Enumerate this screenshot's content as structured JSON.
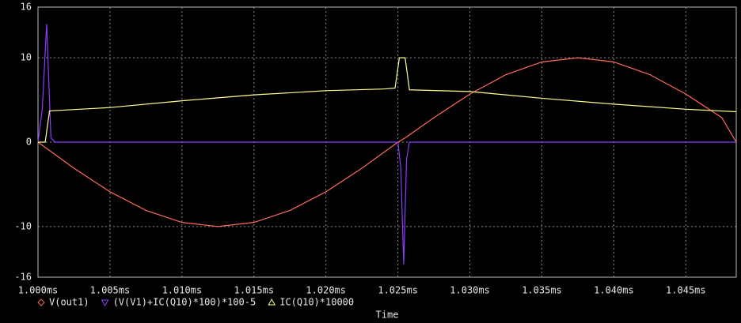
{
  "chart_data": {
    "type": "line",
    "xlabel": "Time",
    "xlim": [
      1.0,
      1.0485
    ],
    "ylim": [
      -16,
      16
    ],
    "xticks": [
      {
        "value": 1.0,
        "label": "1.000ms"
      },
      {
        "value": 1.005,
        "label": "1.005ms"
      },
      {
        "value": 1.01,
        "label": "1.010ms"
      },
      {
        "value": 1.015,
        "label": "1.015ms"
      },
      {
        "value": 1.02,
        "label": "1.020ms"
      },
      {
        "value": 1.025,
        "label": "1.025ms"
      },
      {
        "value": 1.03,
        "label": "1.030ms"
      },
      {
        "value": 1.035,
        "label": "1.035ms"
      },
      {
        "value": 1.04,
        "label": "1.040ms"
      },
      {
        "value": 1.045,
        "label": "1.045ms"
      }
    ],
    "yticks": [
      16,
      10,
      0,
      -10,
      -16
    ],
    "grid": true,
    "series": [
      {
        "name": "V(out1)",
        "color": "#ff6a5a",
        "marker": "diamond",
        "x": [
          1.0,
          1.0025,
          1.005,
          1.0075,
          1.01,
          1.0125,
          1.015,
          1.0175,
          1.02,
          1.0225,
          1.025,
          1.0255,
          1.0275,
          1.03,
          1.0325,
          1.035,
          1.0375,
          1.04,
          1.0425,
          1.045,
          1.0475,
          1.0485
        ],
        "values": [
          0,
          -3.09,
          -5.88,
          -8.09,
          -9.51,
          -10,
          -9.51,
          -8.09,
          -5.88,
          -3.09,
          0,
          0.5,
          2.9,
          5.7,
          8.0,
          9.5,
          10,
          9.5,
          8.0,
          5.7,
          2.9,
          0
        ]
      },
      {
        "name": "(V(V1)+IC(Q10)*100)*100-5",
        "color": "#8a3cff",
        "marker": "triangle-down",
        "x": [
          1.0,
          1.0003,
          1.0006,
          1.0009,
          1.0012,
          1.025,
          1.0252,
          1.0254,
          1.0256,
          1.0258,
          1.0485
        ],
        "values": [
          0,
          4,
          14,
          0.5,
          0,
          0,
          -3,
          -14.5,
          -2,
          0,
          0
        ]
      },
      {
        "name": "IC(Q10)*10000",
        "color": "#ffff8c",
        "marker": "triangle-up",
        "x": [
          1.0,
          1.0005,
          1.0008,
          1.005,
          1.01,
          1.015,
          1.02,
          1.024,
          1.0248,
          1.0251,
          1.0255,
          1.0258,
          1.03,
          1.035,
          1.04,
          1.045,
          1.0485
        ],
        "values": [
          0,
          0,
          3.7,
          4.1,
          4.9,
          5.6,
          6.1,
          6.3,
          6.4,
          10,
          10,
          6.2,
          6.0,
          5.2,
          4.5,
          3.9,
          3.6
        ]
      }
    ]
  }
}
